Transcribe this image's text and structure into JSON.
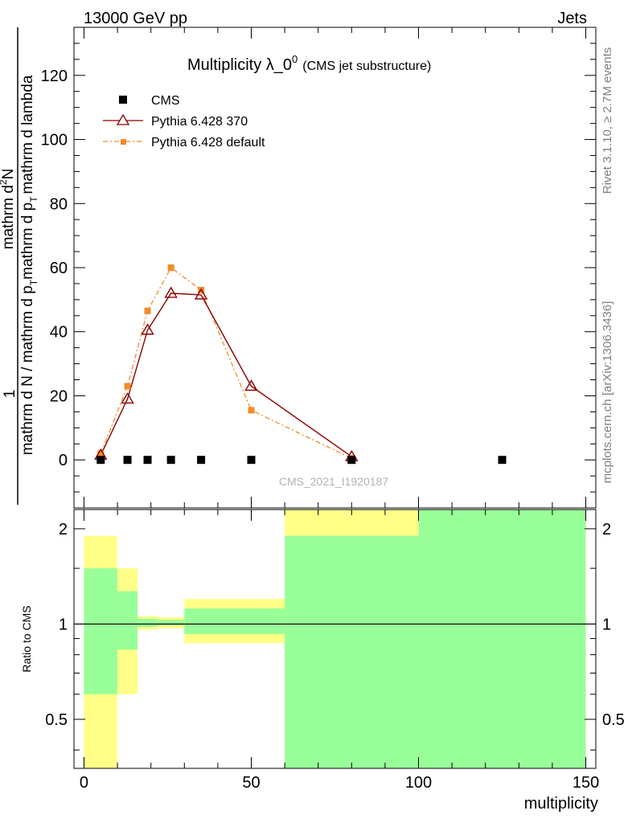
{
  "header": {
    "left": "13000 GeV pp",
    "right": "Jets"
  },
  "side_text": {
    "rivet": "Rivet 3.1.10, ≥ 2.7M events",
    "mcplots": "mcplots.cern.ch [arXiv:1306.3436]"
  },
  "colors": {
    "cms": "#000000",
    "pythia370": "#8b0000",
    "pythia_default": "#f28c28",
    "band_green": "#99ff99",
    "band_yellow": "#ffff88"
  },
  "chart_data": [
    {
      "type": "line",
      "title_main": "Multiplicity λ_0",
      "title_sup": "0",
      "title_sub": "(CMS jet substructure)",
      "watermark": "CMS_2021_I1920187",
      "ylabel": {
        "numerator": "mathrm d",
        "numerator_sup": "2",
        "numerator_tail": "N",
        "one": "1",
        "main": "mathrm d N / mathrm d p",
        "main_sub": "T",
        "main_tail": "mathrm d p",
        "main_tail_sub": "T",
        "main_end": "mathrm d lambda"
      },
      "xlim": [
        -3,
        153
      ],
      "ylim": [
        -15,
        135
      ],
      "yticks": [
        0,
        20,
        40,
        60,
        80,
        100,
        120
      ],
      "legend_position": "top-left",
      "series": [
        {
          "name": "CMS",
          "marker": "square",
          "x": [
            5,
            13,
            19,
            26,
            35,
            50,
            80,
            125
          ],
          "y": [
            0,
            0,
            0,
            0,
            0,
            0,
            0,
            0
          ]
        },
        {
          "name": "Pythia 6.428 370",
          "marker": "triangle",
          "x": [
            5,
            13,
            19,
            26,
            35,
            50,
            80
          ],
          "y": [
            1.5,
            19,
            40.5,
            52,
            51.5,
            23,
            1
          ]
        },
        {
          "name": "Pythia 6.428 default",
          "marker": "small-square",
          "x": [
            5,
            13,
            19,
            26,
            35,
            50,
            80
          ],
          "y": [
            2,
            23,
            46.5,
            60,
            53,
            15.5,
            0.5
          ]
        }
      ]
    },
    {
      "type": "area",
      "ylabel": "Ratio to CMS",
      "xlabel": "multiplicity",
      "xlim": [
        -3,
        153
      ],
      "ylim": [
        0.35,
        2.3
      ],
      "log_y": true,
      "yticks": [
        0.5,
        1,
        2
      ],
      "xticks": [
        0,
        50,
        100,
        150
      ],
      "reference_line": 1,
      "bins": [
        {
          "x0": 0,
          "x1": 10,
          "green": [
            0.6,
            1.5
          ],
          "yellow": [
            0.35,
            1.9
          ]
        },
        {
          "x0": 10,
          "x1": 16,
          "green": [
            0.83,
            1.27
          ],
          "yellow": [
            0.6,
            1.5
          ]
        },
        {
          "x0": 16,
          "x1": 22,
          "green": [
            0.98,
            1.04
          ],
          "yellow": [
            0.96,
            1.06
          ]
        },
        {
          "x0": 22,
          "x1": 30,
          "green": [
            0.99,
            1.03
          ],
          "yellow": [
            0.97,
            1.05
          ]
        },
        {
          "x0": 30,
          "x1": 60,
          "green": [
            0.93,
            1.12
          ],
          "yellow": [
            0.87,
            1.2
          ]
        },
        {
          "x0": 60,
          "x1": 100,
          "green": [
            0.35,
            1.9
          ],
          "yellow": [
            0.35,
            2.3
          ]
        },
        {
          "x0": 100,
          "x1": 150,
          "green": [
            0.35,
            2.3
          ],
          "yellow": [
            0.35,
            2.3
          ]
        }
      ]
    }
  ]
}
